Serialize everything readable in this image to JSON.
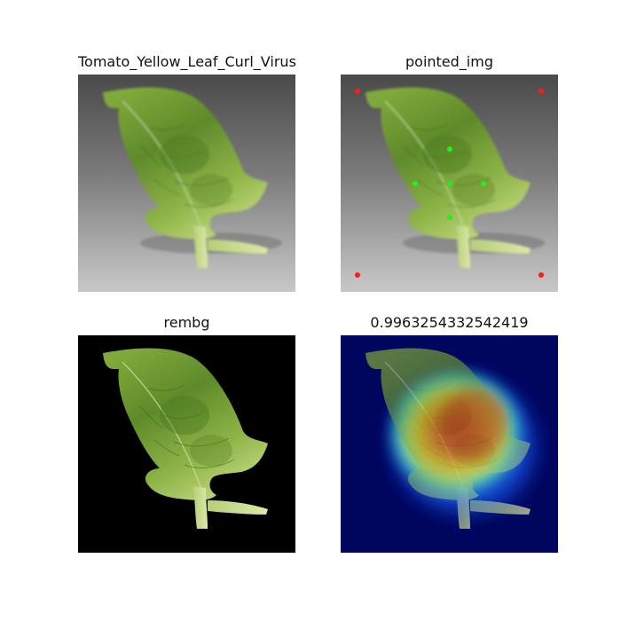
{
  "panels": [
    {
      "title": "Tomato_Yellow_Leaf_Curl_Virus"
    },
    {
      "title": "pointed_img"
    },
    {
      "title": "rembg"
    },
    {
      "title": "0.9963254332542419"
    }
  ],
  "colors": {
    "marker_red": "#ff1a1a",
    "marker_green": "#22ee22",
    "heatmap_background": "#00055e"
  }
}
